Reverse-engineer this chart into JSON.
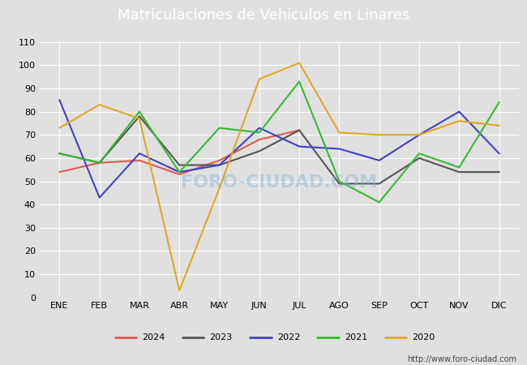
{
  "title": "Matriculaciones de Vehiculos en Linares",
  "months": [
    "ENE",
    "FEB",
    "MAR",
    "ABR",
    "MAY",
    "JUN",
    "JUL",
    "AGO",
    "SEP",
    "OCT",
    "NOV",
    "DIC"
  ],
  "series": {
    "2024": {
      "color": "#e05a4e",
      "values": [
        54,
        58,
        59,
        53,
        59,
        68,
        72,
        null,
        null,
        null,
        null,
        null
      ],
      "label": "2024"
    },
    "2023": {
      "color": "#555555",
      "values": [
        62,
        58,
        78,
        57,
        57,
        63,
        72,
        49,
        49,
        60,
        54,
        54
      ],
      "label": "2023"
    },
    "2022": {
      "color": "#4040cc",
      "values": [
        85,
        43,
        62,
        54,
        57,
        73,
        65,
        64,
        59,
        70,
        80,
        62
      ],
      "label": "2022"
    },
    "2021": {
      "color": "#33bb33",
      "values": [
        62,
        58,
        80,
        54,
        73,
        71,
        93,
        50,
        41,
        62,
        56,
        84
      ],
      "label": "2021"
    },
    "2020": {
      "color": "#ddaa22",
      "values": [
        73,
        83,
        77,
        3,
        47,
        94,
        101,
        71,
        70,
        70,
        76,
        74
      ],
      "label": "2020"
    }
  },
  "ylim": [
    0,
    110
  ],
  "yticks": [
    0,
    10,
    20,
    30,
    40,
    50,
    60,
    70,
    80,
    90,
    100,
    110
  ],
  "plot_bg_color": "#e0e0e0",
  "outer_bg_color": "#e0e0e0",
  "title_bg_color": "#5b9bd5",
  "title_color": "white",
  "grid_color": "white",
  "footer_text": "http://www.foro-ciudad.com",
  "watermark": "FORO-CIUDAD.COM",
  "title_fontsize": 13,
  "tick_fontsize": 8,
  "linewidth": 1.5
}
